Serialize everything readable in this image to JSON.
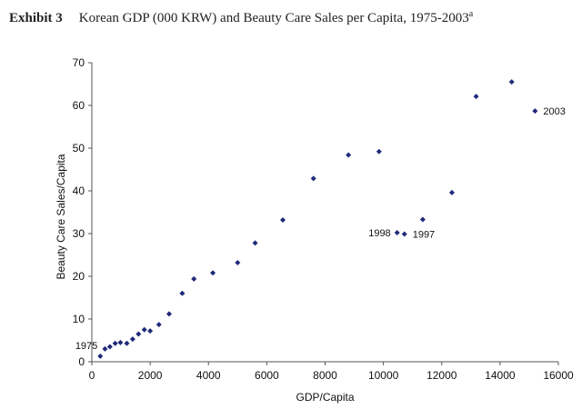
{
  "header": {
    "exhibit": "Exhibit 3",
    "title": "Korean GDP (000 KRW) and Beauty Care Sales per Capita, 1975-2003",
    "superscript": "a"
  },
  "chart_data": {
    "type": "scatter",
    "title": "Korean GDP (000 KRW) and Beauty Care Sales per Capita, 1975-2003",
    "xlabel": "GDP/Capita",
    "ylabel": "Beauty Care Sales/Capita",
    "xlim": [
      0,
      16000
    ],
    "ylim": [
      0,
      70
    ],
    "xticks": [
      0,
      2000,
      4000,
      6000,
      8000,
      10000,
      12000,
      14000,
      16000
    ],
    "yticks": [
      0,
      10,
      20,
      30,
      40,
      50,
      60,
      70
    ],
    "grid": false,
    "legend": "none",
    "marker_color": "#1f2a7a",
    "points": [
      {
        "x": 290,
        "y": 1.3
      },
      {
        "x": 450,
        "y": 3.0
      },
      {
        "x": 620,
        "y": 3.5
      },
      {
        "x": 800,
        "y": 4.3
      },
      {
        "x": 980,
        "y": 4.5
      },
      {
        "x": 1200,
        "y": 4.3
      },
      {
        "x": 1400,
        "y": 5.3
      },
      {
        "x": 1600,
        "y": 6.5
      },
      {
        "x": 1800,
        "y": 7.5
      },
      {
        "x": 2000,
        "y": 7.2
      },
      {
        "x": 2300,
        "y": 8.7
      },
      {
        "x": 2650,
        "y": 11.2
      },
      {
        "x": 3100,
        "y": 16.0
      },
      {
        "x": 3500,
        "y": 19.4
      },
      {
        "x": 4150,
        "y": 20.8
      },
      {
        "x": 5000,
        "y": 23.2
      },
      {
        "x": 5600,
        "y": 27.8
      },
      {
        "x": 6550,
        "y": 33.2
      },
      {
        "x": 7600,
        "y": 42.9
      },
      {
        "x": 8800,
        "y": 48.4
      },
      {
        "x": 9850,
        "y": 49.2
      },
      {
        "x": 10470,
        "y": 30.2
      },
      {
        "x": 10720,
        "y": 29.9
      },
      {
        "x": 11350,
        "y": 33.3
      },
      {
        "x": 12350,
        "y": 39.6
      },
      {
        "x": 13180,
        "y": 62.1
      },
      {
        "x": 14400,
        "y": 65.5
      },
      {
        "x": 15200,
        "y": 58.7
      }
    ],
    "annotations": [
      {
        "label": "1975",
        "point_index": 0,
        "side": "left"
      },
      {
        "label": "1998",
        "point_index": 21,
        "side": "left"
      },
      {
        "label": "1997",
        "point_index": 22,
        "side": "right"
      },
      {
        "label": "2003",
        "point_index": 27,
        "side": "right"
      }
    ]
  }
}
